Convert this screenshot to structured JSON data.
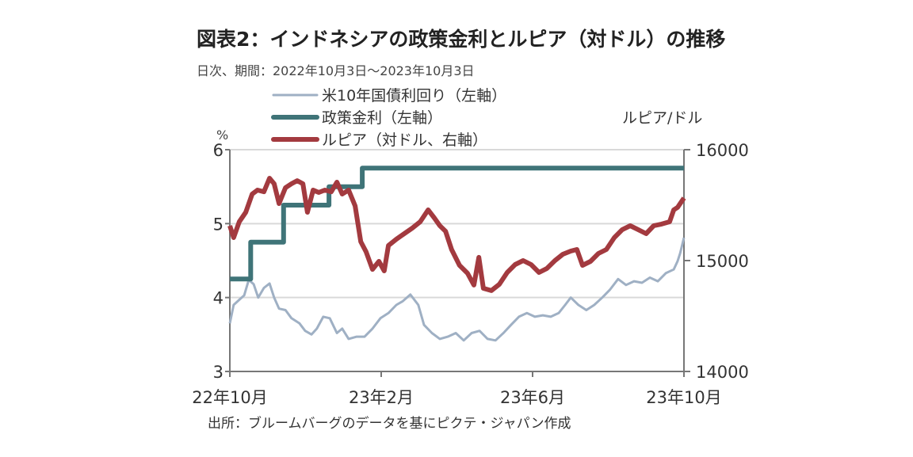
{
  "chart_data": {
    "type": "line",
    "title": "図表2：インドネシアの政策金利とルピア（対ドル）の推移",
    "subtitle": "日次、期間：2022年10月3日～2023年10月3日",
    "source": "出所：ブルームバーグのデータを基にピクテ・ジャパン作成",
    "left_axis": {
      "unit_label": "%",
      "ylim": [
        3,
        6
      ],
      "ticks": [
        "3",
        "4",
        "5",
        "6"
      ]
    },
    "right_axis": {
      "unit_label": "ルピア/ドル",
      "ylim": [
        14000,
        16000
      ],
      "ticks": [
        "14000",
        "15000",
        "16000"
      ]
    },
    "x_axis": {
      "unit": "months since 2022-10-03",
      "xlim": [
        0,
        12
      ],
      "ticks": [
        {
          "x": 0,
          "label": "22年10月"
        },
        {
          "x": 4,
          "label": "23年2月"
        },
        {
          "x": 8,
          "label": "23年6月"
        },
        {
          "x": 12,
          "label": "23年10月"
        }
      ]
    },
    "grid": true,
    "legend_position": "top",
    "series": [
      {
        "name": "米10年国債利回り（左軸）",
        "axis": "left",
        "color": "#9fb0c4",
        "points": [
          [
            0,
            3.65
          ],
          [
            0.1,
            3.9
          ],
          [
            0.25,
            3.97
          ],
          [
            0.38,
            4.03
          ],
          [
            0.5,
            4.24
          ],
          [
            0.63,
            4.18
          ],
          [
            0.75,
            4.0
          ],
          [
            0.9,
            4.13
          ],
          [
            1.05,
            4.19
          ],
          [
            1.17,
            4.0
          ],
          [
            1.3,
            3.85
          ],
          [
            1.47,
            3.83
          ],
          [
            1.63,
            3.72
          ],
          [
            1.84,
            3.65
          ],
          [
            1.99,
            3.55
          ],
          [
            2.16,
            3.5
          ],
          [
            2.3,
            3.58
          ],
          [
            2.47,
            3.74
          ],
          [
            2.64,
            3.72
          ],
          [
            2.83,
            3.52
          ],
          [
            2.97,
            3.58
          ],
          [
            3.14,
            3.44
          ],
          [
            3.35,
            3.47
          ],
          [
            3.56,
            3.47
          ],
          [
            3.77,
            3.58
          ],
          [
            3.98,
            3.72
          ],
          [
            4.19,
            3.79
          ],
          [
            4.4,
            3.9
          ],
          [
            4.57,
            3.95
          ],
          [
            4.77,
            4.04
          ],
          [
            4.98,
            3.9
          ],
          [
            5.13,
            3.63
          ],
          [
            5.34,
            3.52
          ],
          [
            5.55,
            3.44
          ],
          [
            5.76,
            3.47
          ],
          [
            5.97,
            3.52
          ],
          [
            6.18,
            3.42
          ],
          [
            6.39,
            3.52
          ],
          [
            6.6,
            3.55
          ],
          [
            6.81,
            3.44
          ],
          [
            7.02,
            3.42
          ],
          [
            7.23,
            3.52
          ],
          [
            7.43,
            3.63
          ],
          [
            7.64,
            3.74
          ],
          [
            7.85,
            3.79
          ],
          [
            8.06,
            3.74
          ],
          [
            8.27,
            3.76
          ],
          [
            8.48,
            3.74
          ],
          [
            8.69,
            3.79
          ],
          [
            8.86,
            3.9
          ],
          [
            9.01,
            4.0
          ],
          [
            9.21,
            3.9
          ],
          [
            9.42,
            3.83
          ],
          [
            9.63,
            3.9
          ],
          [
            9.84,
            4.0
          ],
          [
            10.05,
            4.11
          ],
          [
            10.26,
            4.25
          ],
          [
            10.47,
            4.17
          ],
          [
            10.68,
            4.22
          ],
          [
            10.89,
            4.2
          ],
          [
            11.1,
            4.27
          ],
          [
            11.31,
            4.22
          ],
          [
            11.52,
            4.33
          ],
          [
            11.73,
            4.38
          ],
          [
            11.83,
            4.49
          ],
          [
            11.9,
            4.6
          ],
          [
            12,
            4.81
          ]
        ]
      },
      {
        "name": "政策金利（左軸）",
        "axis": "left",
        "color": "#3f7478",
        "points": [
          [
            0,
            4.25
          ],
          [
            0.55,
            4.25
          ],
          [
            0.55,
            4.75
          ],
          [
            1.42,
            4.75
          ],
          [
            1.42,
            5.25
          ],
          [
            2.62,
            5.25
          ],
          [
            2.62,
            5.5
          ],
          [
            3.5,
            5.5
          ],
          [
            3.5,
            5.75
          ],
          [
            12,
            5.75
          ]
        ]
      },
      {
        "name": "ルピア（対ドル、右軸）",
        "axis": "right",
        "color": "#a33a3f",
        "points": [
          [
            0,
            15314
          ],
          [
            0.1,
            15207
          ],
          [
            0.25,
            15350
          ],
          [
            0.42,
            15436
          ],
          [
            0.59,
            15600
          ],
          [
            0.73,
            15636
          ],
          [
            0.9,
            15621
          ],
          [
            1.05,
            15743
          ],
          [
            1.17,
            15693
          ],
          [
            1.3,
            15514
          ],
          [
            1.47,
            15657
          ],
          [
            1.63,
            15693
          ],
          [
            1.78,
            15721
          ],
          [
            1.93,
            15693
          ],
          [
            2.05,
            15436
          ],
          [
            2.2,
            15636
          ],
          [
            2.35,
            15614
          ],
          [
            2.51,
            15636
          ],
          [
            2.68,
            15621
          ],
          [
            2.83,
            15707
          ],
          [
            2.97,
            15600
          ],
          [
            3.14,
            15636
          ],
          [
            3.31,
            15493
          ],
          [
            3.46,
            15171
          ],
          [
            3.6,
            15079
          ],
          [
            3.77,
            14921
          ],
          [
            3.94,
            14993
          ],
          [
            4.08,
            14907
          ],
          [
            4.19,
            15136
          ],
          [
            4.4,
            15193
          ],
          [
            4.61,
            15243
          ],
          [
            4.82,
            15293
          ],
          [
            5.03,
            15350
          ],
          [
            5.24,
            15457
          ],
          [
            5.4,
            15386
          ],
          [
            5.55,
            15314
          ],
          [
            5.7,
            15264
          ],
          [
            5.86,
            15100
          ],
          [
            6.07,
            14957
          ],
          [
            6.28,
            14886
          ],
          [
            6.45,
            14779
          ],
          [
            6.58,
            15029
          ],
          [
            6.7,
            14750
          ],
          [
            6.91,
            14729
          ],
          [
            7.12,
            14786
          ],
          [
            7.33,
            14893
          ],
          [
            7.54,
            14964
          ],
          [
            7.75,
            15000
          ],
          [
            7.96,
            14964
          ],
          [
            8.17,
            14893
          ],
          [
            8.38,
            14929
          ],
          [
            8.59,
            15000
          ],
          [
            8.8,
            15057
          ],
          [
            9.01,
            15086
          ],
          [
            9.17,
            15100
          ],
          [
            9.32,
            14957
          ],
          [
            9.53,
            14993
          ],
          [
            9.74,
            15064
          ],
          [
            9.95,
            15100
          ],
          [
            10.16,
            15207
          ],
          [
            10.37,
            15279
          ],
          [
            10.58,
            15314
          ],
          [
            10.79,
            15279
          ],
          [
            11.0,
            15243
          ],
          [
            11.2,
            15314
          ],
          [
            11.41,
            15329
          ],
          [
            11.62,
            15350
          ],
          [
            11.73,
            15457
          ],
          [
            11.83,
            15479
          ],
          [
            12,
            15564
          ]
        ]
      }
    ]
  }
}
